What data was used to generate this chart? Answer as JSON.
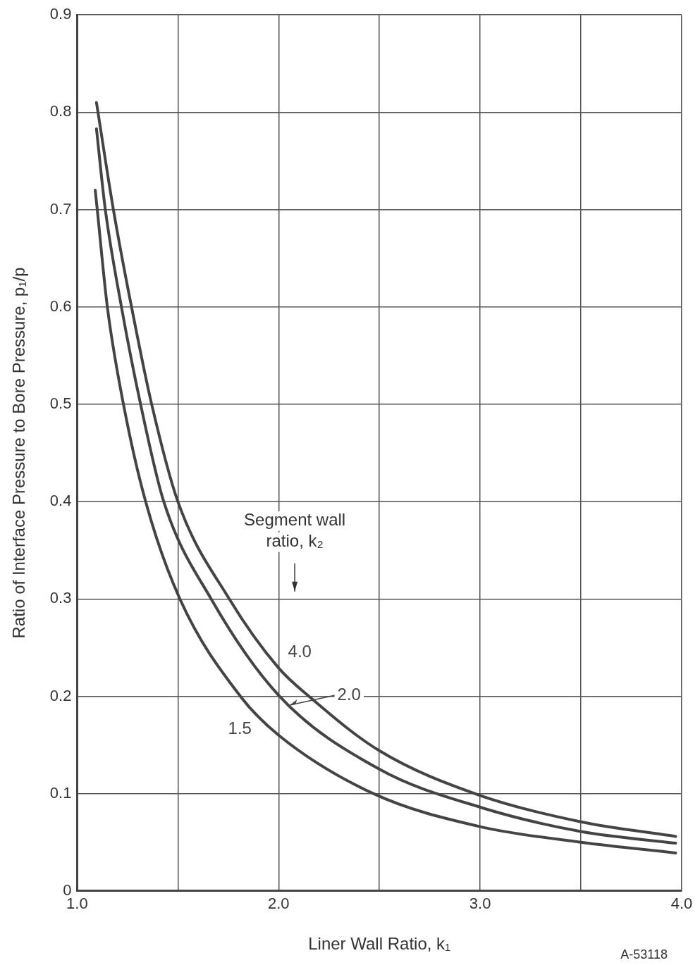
{
  "chart_data": {
    "type": "line",
    "xlabel": "Liner Wall Ratio, k₁",
    "ylabel": "Ratio of Interface Pressure to Bore Pressure, p₁/p",
    "annotations": [
      "Segment wall ratio, k₂",
      "A-53118"
    ],
    "series": [
      {
        "name": "4.0",
        "color": "#444444",
        "x": [
          1.096,
          1.18,
          1.27,
          1.37,
          1.5,
          1.755,
          2.0,
          2.15,
          2.5,
          3.0,
          3.5,
          3.97
        ],
        "values": [
          0.81,
          0.7,
          0.6,
          0.5,
          0.4,
          0.3,
          0.229,
          0.2,
          0.144,
          0.098,
          0.071,
          0.056
        ]
      },
      {
        "name": "2.0",
        "color": "#444444",
        "x": [
          1.096,
          1.14,
          1.22,
          1.315,
          1.43,
          1.665,
          2.0,
          2.5,
          3.0,
          3.5,
          3.97
        ],
        "values": [
          0.783,
          0.7,
          0.6,
          0.5,
          0.4,
          0.3,
          0.201,
          0.125,
          0.086,
          0.061,
          0.049
        ]
      },
      {
        "name": "1.5",
        "color": "#444444",
        "x": [
          1.09,
          1.1,
          1.15,
          1.23,
          1.34,
          1.51,
          1.81,
          2.0,
          2.47,
          3.0,
          3.5,
          3.97
        ],
        "values": [
          0.72,
          0.7,
          0.6,
          0.5,
          0.4,
          0.3,
          0.2,
          0.16,
          0.1,
          0.066,
          0.05,
          0.039
        ]
      }
    ],
    "xlim": [
      1,
      4
    ],
    "xticks": [
      {
        "value": 1,
        "label": "1.0"
      },
      {
        "value": 1.5,
        "label": null
      },
      {
        "value": 2,
        "label": "2.0"
      },
      {
        "value": 2.5,
        "label": null
      },
      {
        "value": 3,
        "label": "3.0"
      },
      {
        "value": 3.5,
        "label": null
      },
      {
        "value": 4,
        "label": "4.0"
      }
    ],
    "ylim": [
      0,
      0.9
    ],
    "yticks": [
      0,
      0.1,
      0.2,
      0.3,
      0.4,
      0.5,
      0.6,
      0.7,
      0.8,
      0.9
    ],
    "grid": true,
    "marker": "none",
    "line_style": "solid"
  }
}
